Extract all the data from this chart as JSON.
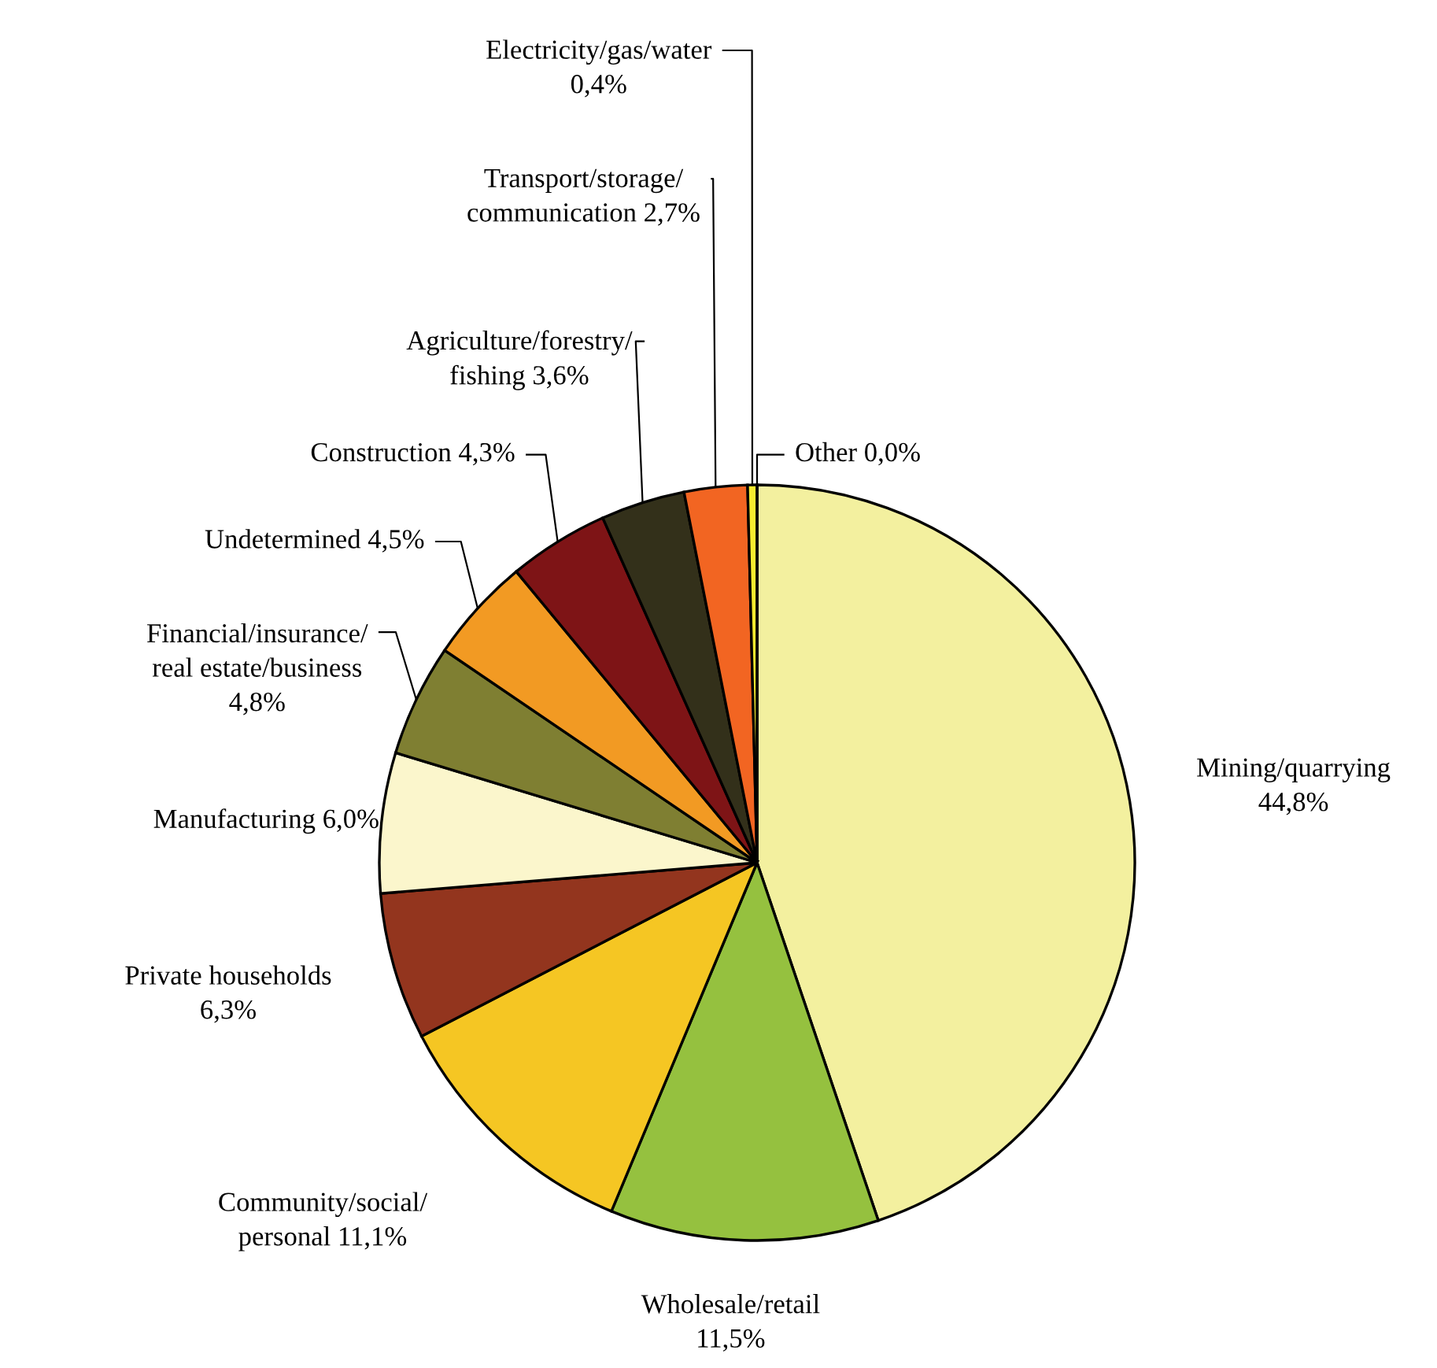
{
  "chart_data": {
    "type": "pie",
    "categories": [
      "Mining/quarrying",
      "Wholesale/retail",
      "Community/social/\npersonal",
      "Private households",
      "Manufacturing",
      "Financial/insurance/\nreal estate/business",
      "Undetermined",
      "Construction",
      "Agriculture/forestry/\nfishing",
      "Transport/storage/\ncommunication",
      "Electricity/gas/water",
      "Other"
    ],
    "values": [
      44.8,
      11.5,
      11.1,
      6.3,
      6.0,
      4.8,
      4.5,
      4.3,
      3.6,
      2.7,
      0.4,
      0.0
    ],
    "value_labels": [
      "44,8%",
      "11,5%",
      "11,1%",
      "6,3%",
      "6,0%",
      "4,8%",
      "4,5%",
      "4,3%",
      "3,6%",
      "2,7%",
      "0,4%",
      "0,0%"
    ],
    "colors": [
      "#f3f09f",
      "#95c13f",
      "#f5c623",
      "#93351e",
      "#fbf6cc",
      "#7f7f32",
      "#f29a23",
      "#7e1416",
      "#33301a",
      "#f26522",
      "#f6ec2f",
      "#f6ec2f"
    ]
  }
}
